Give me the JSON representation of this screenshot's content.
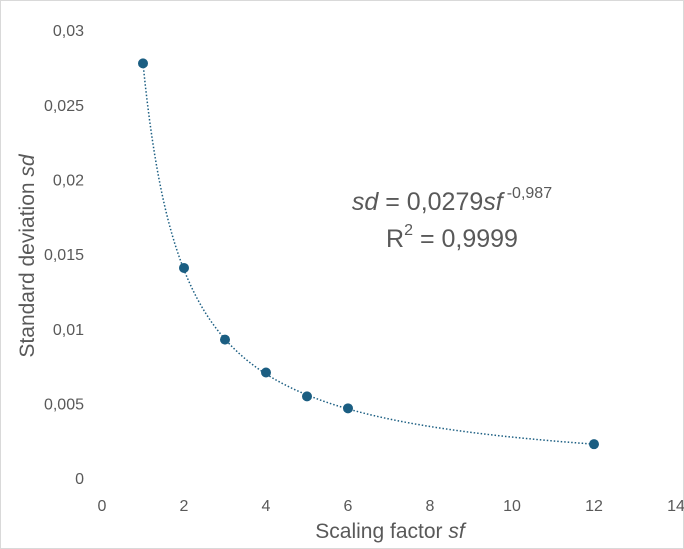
{
  "chart_data": {
    "type": "scatter",
    "x_label": {
      "text": "Scaling factor ",
      "italic": "sf"
    },
    "y_label": {
      "text": "Standard deviation ",
      "italic": "sd"
    },
    "x": [
      1,
      2,
      3,
      4,
      5,
      6,
      12
    ],
    "series": [
      {
        "color": "#1b5e82",
        "values": [
          0.0279,
          0.0142,
          0.0094,
          0.0072,
          0.0056,
          0.0048,
          0.0024
        ]
      }
    ],
    "xlim": [
      0,
      14
    ],
    "xticks": [
      0,
      2,
      4,
      6,
      8,
      10,
      12,
      14
    ],
    "ylim": [
      0,
      0.03
    ],
    "yticks": [
      0,
      {
        "value": 0.005,
        "label": "0,005"
      },
      {
        "value": 0.01,
        "label": "0,01"
      },
      {
        "value": 0.015,
        "label": "0,015"
      },
      {
        "value": 0.02,
        "label": "0,02"
      },
      {
        "value": 0.025,
        "label": "0,025"
      },
      {
        "value": 0.03,
        "label": "0,03"
      }
    ],
    "grid": false,
    "trendline": {
      "type": "power",
      "coefficient": 0.0279,
      "coefficient_label": "0,0279",
      "exponent": -0.987,
      "exponent_label": "-0,987",
      "r2": 0.9999,
      "r2_label": "0,9999",
      "lhs": "sd",
      "equals": " = ",
      "variable": "sf",
      "r": "R",
      "r_sup": "2"
    }
  }
}
